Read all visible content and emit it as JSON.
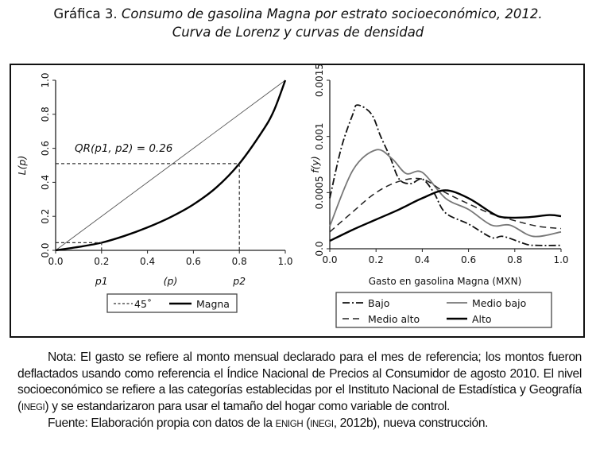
{
  "title": {
    "prefix": "Gráfica 3.",
    "line1": "Consumo de gasolina Magna por estrato socioeconómico, 2012.",
    "line2": "Curva de Lorenz y curvas de densidad"
  },
  "chart_data": [
    {
      "type": "line",
      "name": "lorenz",
      "ylabel": "L(p)",
      "xlabel": "(p)",
      "xlim": [
        0,
        1
      ],
      "ylim": [
        0,
        1
      ],
      "xticks": [
        "0.0",
        "0.2",
        "0.4",
        "0.6",
        "0.8",
        "1.0"
      ],
      "yticks": [
        "0.0",
        "0.2",
        "0.4",
        "0.6",
        "0.8",
        "1.0"
      ],
      "x_markers": {
        "p1": "p1",
        "p2": "p2"
      },
      "annotation": "QR(p1, p2) = 0.26",
      "p1": 0.2,
      "p2": 0.8,
      "L_p1": 0.045,
      "L_p2": 0.51,
      "series": [
        {
          "name": "45°",
          "x": [
            0,
            1
          ],
          "y": [
            0,
            1
          ]
        },
        {
          "name": "Magna",
          "x": [
            0,
            0.1,
            0.2,
            0.3,
            0.4,
            0.5,
            0.6,
            0.7,
            0.8,
            0.9,
            0.95,
            1
          ],
          "y": [
            0,
            0.02,
            0.045,
            0.085,
            0.135,
            0.195,
            0.27,
            0.37,
            0.51,
            0.7,
            0.82,
            1
          ]
        }
      ],
      "legend": [
        "45˚",
        "Magna"
      ],
      "legend_placement": "bottom"
    },
    {
      "type": "line",
      "name": "density",
      "ylabel": "f(y)",
      "xlabel": "Gasto en gasolina Magna (MXN)",
      "xlim": [
        0,
        1
      ],
      "ylim": [
        0,
        0.0015
      ],
      "xticks": [
        "0.0",
        "0.2",
        "0.4",
        "0.6",
        "0.8",
        "1.0"
      ],
      "yticks": [
        "0.0",
        "0.0005",
        "0.001",
        "0.0015"
      ],
      "series": [
        {
          "name": "Bajo",
          "x": [
            0,
            0.05,
            0.1,
            0.12,
            0.18,
            0.22,
            0.26,
            0.3,
            0.35,
            0.4,
            0.45,
            0.5,
            0.6,
            0.7,
            0.75,
            0.85,
            0.9,
            1
          ],
          "y": [
            0.00045,
            0.0009,
            0.0012,
            0.00128,
            0.0012,
            0.001,
            0.00082,
            0.00062,
            0.00058,
            0.00062,
            0.0005,
            0.00032,
            0.00022,
            0.0001,
            0.00011,
            4e-05,
            3e-05,
            3e-05
          ]
        },
        {
          "name": "Medio bajo",
          "x": [
            0,
            0.1,
            0.2,
            0.27,
            0.33,
            0.4,
            0.5,
            0.6,
            0.7,
            0.78,
            0.88,
            1
          ],
          "y": [
            0.0002,
            0.0007,
            0.00088,
            0.0008,
            0.00067,
            0.00068,
            0.00045,
            0.00035,
            0.00021,
            0.00021,
            0.00011,
            0.00015
          ]
        },
        {
          "name": "Medio alto",
          "x": [
            0,
            0.1,
            0.2,
            0.3,
            0.4,
            0.5,
            0.6,
            0.7,
            0.8,
            0.9,
            1
          ],
          "y": [
            0.00015,
            0.00033,
            0.0005,
            0.0006,
            0.00062,
            0.0005,
            0.0004,
            0.00031,
            0.00025,
            0.0002,
            0.00018
          ]
        },
        {
          "name": "Alto",
          "x": [
            0,
            0.1,
            0.2,
            0.3,
            0.4,
            0.5,
            0.6,
            0.7,
            0.75,
            0.85,
            0.95,
            1
          ],
          "y": [
            7e-05,
            0.00017,
            0.00026,
            0.00035,
            0.00045,
            0.00052,
            0.00045,
            0.00032,
            0.00028,
            0.00028,
            0.0003,
            0.00029
          ]
        }
      ],
      "legend": [
        "Bajo",
        "Medio bajo",
        "Medio alto",
        "Alto"
      ],
      "legend_placement": "bottom"
    }
  ],
  "note": {
    "nota_a": "Nota: El gasto se refiere al monto mensual declarado para el mes de referencia; los montos fueron deflactados usando como referencia el Índice Nacional de Precios al Consumidor de agosto 2010. El nivel socioeconómico se refiere a las categorías establecidas por el Instituto Nacional de Estadística y Geografía (",
    "nota_sc": "INEGI",
    "nota_b": ") y se estandarizaron para usar el tamaño del hogar como variable de control.",
    "fuente_a": "Fuente: Elaboración propia con datos de la ",
    "fuente_sc1": "ENIGH",
    "fuente_b": " (",
    "fuente_sc2": "INEGI",
    "fuente_c": ", 2012b), nueva construcción."
  }
}
